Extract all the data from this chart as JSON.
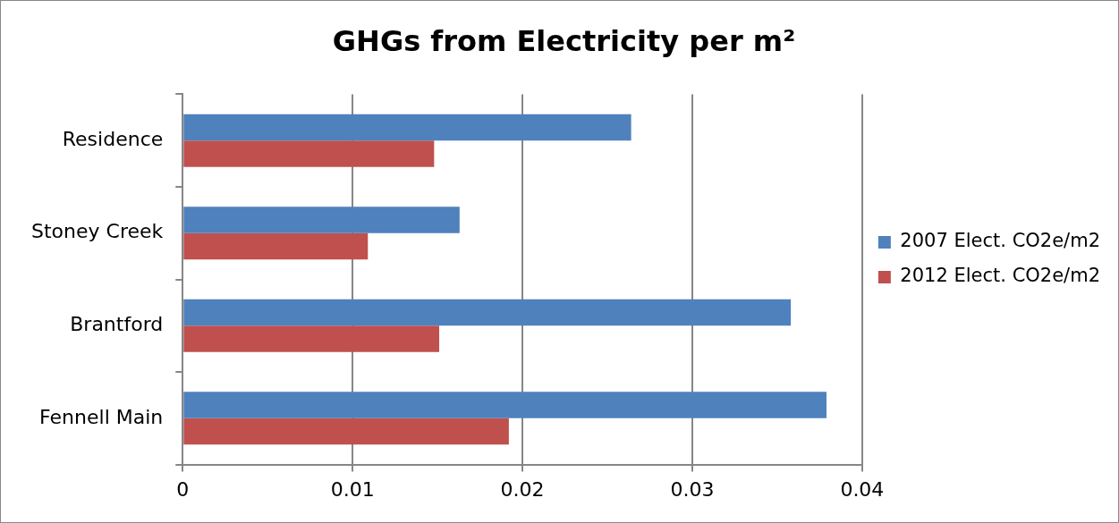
{
  "chart_data": {
    "type": "bar",
    "orientation": "horizontal",
    "title": "GHGs from Electricity per m²",
    "categories": [
      "Residence",
      "Stoney Creek",
      "Brantford",
      "Fennell Main"
    ],
    "series": [
      {
        "name": "2007 Elect. CO2e/m2",
        "color": "#4f81bd",
        "values": [
          0.0264,
          0.0163,
          0.0358,
          0.0379
        ]
      },
      {
        "name": "2012 Elect. CO2e/m2",
        "color": "#c0504d",
        "values": [
          0.0148,
          0.0109,
          0.0151,
          0.0192
        ]
      }
    ],
    "xlim": [
      0,
      0.04
    ],
    "xticks": [
      0,
      0.01,
      0.02,
      0.03,
      0.04
    ],
    "grid": "x",
    "legend": "right"
  }
}
